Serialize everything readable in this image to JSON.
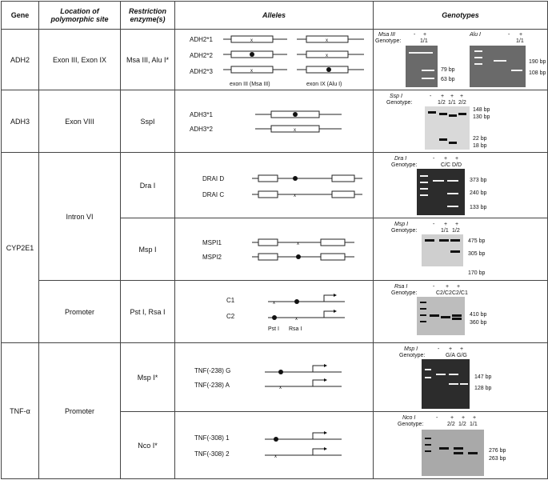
{
  "headers": {
    "gene": "Gene",
    "location": "Location of polymorphic site",
    "restriction": "Restriction enzyme(s)",
    "alleles": "Alleles",
    "genotypes": "Genotypes"
  },
  "rows": {
    "adh2": {
      "gene": "ADH2",
      "location": "Exon III, Exon IX",
      "enzyme": "Msa III, Alu I*",
      "alleles": [
        "ADH2*1",
        "ADH2*2",
        "ADH2*3"
      ],
      "exon_labels": [
        "exon III (Msa III)",
        "exon IX (Alu I)"
      ],
      "gel": {
        "enzyme_a": "Msa III",
        "enzyme_b": "Alu I",
        "genotype_label": "Genotype:",
        "signs_a": [
          "-",
          "+"
        ],
        "signs_b": [
          "-",
          "+"
        ],
        "genotypes_a": [
          "",
          "1/1"
        ],
        "genotypes_b": [
          "",
          "1/1"
        ],
        "sizes_a": [
          "79 bp",
          "63 bp"
        ],
        "sizes_b": [
          "190 bp",
          "108 bp"
        ]
      }
    },
    "adh3": {
      "gene": "ADH3",
      "location": "Exon VIII",
      "enzyme": "SspI",
      "alleles": [
        "ADH3*1",
        "ADH3*2"
      ],
      "gel": {
        "enzyme": "Ssp I",
        "genotype_label": "Genotype:",
        "signs": [
          "-",
          "+",
          "+",
          "+"
        ],
        "genotypes": [
          "",
          "1/2",
          "1/1",
          "2/2"
        ],
        "sizes": [
          "148 bp",
          "130 bp",
          "22 bp",
          "18 bp"
        ]
      }
    },
    "cyp2e1": {
      "gene": "CYP2E1",
      "location_intron": "Intron VI",
      "location_promoter": "Promoter",
      "dra": {
        "enzyme": "Dra I",
        "alleles": [
          "DRAI D",
          "DRAI C"
        ],
        "gel": {
          "enzyme": "Dra I",
          "genotype_label": "Genotype:",
          "signs": [
            "-",
            "+",
            "+"
          ],
          "genotypes": [
            "",
            "C/C",
            "D/D"
          ],
          "sizes": [
            "373 bp",
            "240 bp",
            "133 bp"
          ]
        }
      },
      "msp": {
        "enzyme": "Msp I",
        "alleles": [
          "MSPI1",
          "MSPI2"
        ],
        "gel": {
          "enzyme": "Msp I",
          "genotype_label": "Genotype:",
          "signs": [
            "-",
            "+",
            "+"
          ],
          "genotypes": [
            "",
            "1/1",
            "1/2"
          ],
          "sizes": [
            "475 bp",
            "305 bp",
            "170 bp"
          ]
        }
      },
      "promoter": {
        "enzyme": "Pst I, Rsa I",
        "alleles": [
          "C1",
          "C2"
        ],
        "site_labels": [
          "Pst I",
          "Rsa I"
        ],
        "gel": {
          "enzyme": "Rsa I",
          "genotype_label": "Genotype:",
          "signs": [
            "-",
            "+",
            "+"
          ],
          "genotypes": [
            "",
            "C2/C2",
            "C2/C1"
          ],
          "sizes": [
            "410 bp",
            "360 bp"
          ]
        }
      }
    },
    "tnf": {
      "gene": "TNF-α",
      "location": "Promoter",
      "msp": {
        "enzyme": "Msp I*",
        "alleles": [
          "TNF(-238) G",
          "TNF(-238) A"
        ],
        "gel": {
          "enzyme": "Msp I",
          "genotype_label": "Genotype:",
          "signs": [
            "-",
            "+",
            "+"
          ],
          "genotypes": [
            "",
            "G/A",
            "G/G"
          ],
          "sizes": [
            "147 bp",
            "128 bp"
          ]
        }
      },
      "nco": {
        "enzyme": "Nco I*",
        "alleles": [
          "TNF(-308) 1",
          "TNF(-308) 2"
        ],
        "gel": {
          "enzyme": "Nco I",
          "genotype_label": "Genotype:",
          "signs": [
            "-",
            "+",
            "+",
            "+"
          ],
          "genotypes": [
            "",
            "2/2",
            "1/2",
            "1/1"
          ],
          "sizes": [
            "276 bp",
            "263 bp"
          ]
        }
      }
    }
  }
}
